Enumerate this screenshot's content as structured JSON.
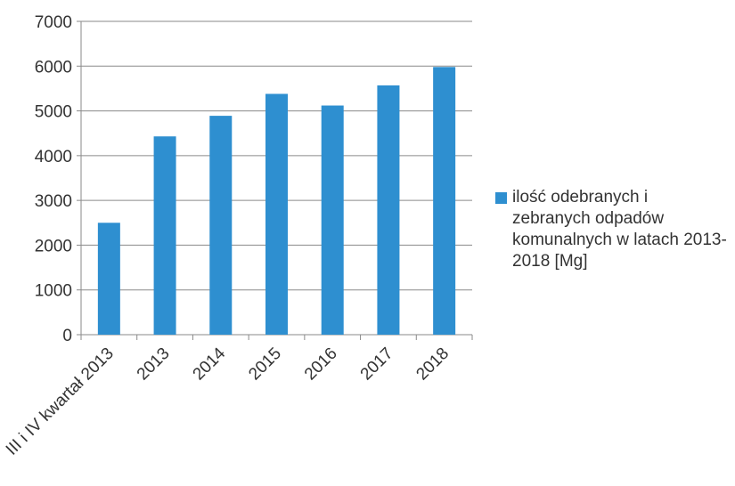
{
  "chart_data": {
    "type": "bar",
    "categories": [
      "III i IV kwartał 2013",
      "2013",
      "2014",
      "2015",
      "2016",
      "2017",
      "2018"
    ],
    "series": [
      {
        "name": "ilość odebranych i zebranych odpadów komunalnych w latach 2013-2018 [Mg]",
        "values": [
          2500,
          4430,
          4890,
          5380,
          5120,
          5570,
          5980
        ],
        "color": "#2e8fd0"
      }
    ],
    "yticks": [
      "0",
      "1000",
      "2000",
      "3000",
      "4000",
      "5000",
      "6000",
      "7000"
    ],
    "ylim": [
      0,
      7000
    ],
    "grid": true,
    "legend_position": "right",
    "title": "",
    "xlabel": "",
    "ylabel": ""
  }
}
